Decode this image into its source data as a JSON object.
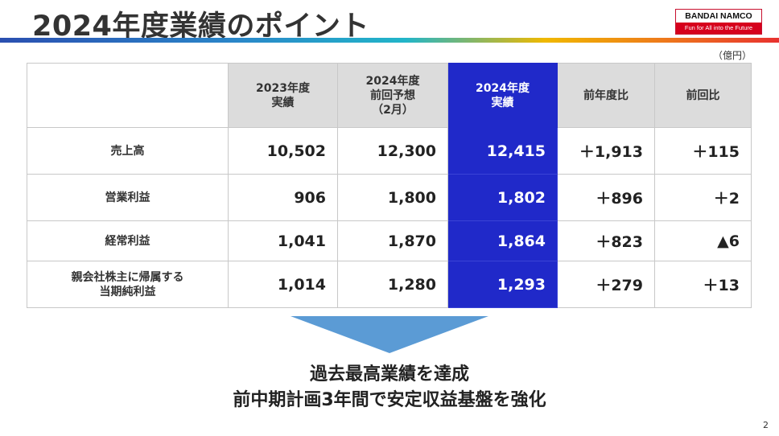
{
  "header": {
    "title": "2024年度業績のポイント",
    "brand_colors": [
      "#2a4fb0",
      "#21b5c9",
      "#f0b800",
      "#ee7a1b",
      "#e8312f"
    ]
  },
  "logo": {
    "main": "BANDAI NAMCO",
    "tagline": "Fun for All into the Future",
    "color": "#d6001c"
  },
  "table": {
    "unit": "（億円）",
    "highlight_color": "#2029c9",
    "columns": [
      {
        "lines": [
          "2023年度",
          "実績"
        ]
      },
      {
        "lines": [
          "2024年度",
          "前回予想",
          "（2月）"
        ]
      },
      {
        "lines": [
          "2024年度",
          "実績"
        ]
      },
      {
        "lines": [
          "前年度比"
        ]
      },
      {
        "lines": [
          "前回比"
        ]
      }
    ],
    "rows": [
      {
        "label": [
          "売上高"
        ],
        "values": [
          "10,502",
          "12,300",
          "12,415",
          "＋1,913",
          "＋115"
        ]
      },
      {
        "label": [
          "営業利益"
        ],
        "values": [
          "906",
          "1,800",
          "1,802",
          "＋896",
          "＋2"
        ]
      },
      {
        "label": [
          "経常利益"
        ],
        "values": [
          "1,041",
          "1,870",
          "1,864",
          "＋823",
          "▲6"
        ]
      },
      {
        "label": [
          "親会社株主に帰属する",
          "当期純利益"
        ],
        "values": [
          "1,014",
          "1,280",
          "1,293",
          "＋279",
          "＋13"
        ]
      }
    ]
  },
  "conclusion": {
    "line1": "過去最高業績を達成",
    "line2": "前中期計画3年間で安定収益基盤を強化"
  },
  "page_number": "2"
}
